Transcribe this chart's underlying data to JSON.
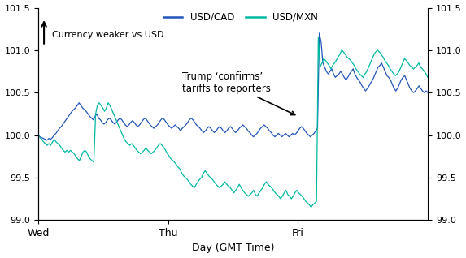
{
  "xlabel": "Day (GMT Time)",
  "ylim": [
    99.0,
    101.5
  ],
  "yticks": [
    99.0,
    99.5,
    100.0,
    100.5,
    101.0,
    101.5
  ],
  "xtick_labels": [
    "Wed",
    "Thu",
    "Fri"
  ],
  "line1_label": "USD/CAD",
  "line1_color": "#2255bb",
  "line2_label": "USD/MXN",
  "line2_color": "#00b8a0",
  "annotation_text": "Trump ‘confirms’\ntariffs to reporters",
  "currency_weaker_text": "Currency weaker vs USD",
  "usd_cad": [
    100.0,
    99.98,
    99.97,
    99.96,
    99.95,
    99.94,
    99.96,
    99.95,
    99.97,
    100.0,
    100.02,
    100.05,
    100.08,
    100.1,
    100.13,
    100.16,
    100.19,
    100.22,
    100.25,
    100.28,
    100.3,
    100.32,
    100.35,
    100.38,
    100.35,
    100.32,
    100.3,
    100.28,
    100.25,
    100.22,
    100.2,
    100.18,
    100.22,
    100.25,
    100.2,
    100.18,
    100.15,
    100.13,
    100.15,
    100.18,
    100.2,
    100.18,
    100.15,
    100.13,
    100.15,
    100.18,
    100.2,
    100.18,
    100.15,
    100.12,
    100.1,
    100.12,
    100.15,
    100.17,
    100.15,
    100.12,
    100.1,
    100.12,
    100.15,
    100.18,
    100.2,
    100.18,
    100.15,
    100.12,
    100.1,
    100.08,
    100.1,
    100.12,
    100.15,
    100.18,
    100.2,
    100.18,
    100.15,
    100.12,
    100.1,
    100.08,
    100.1,
    100.12,
    100.1,
    100.08,
    100.05,
    100.08,
    100.1,
    100.12,
    100.15,
    100.18,
    100.2,
    100.18,
    100.15,
    100.12,
    100.1,
    100.08,
    100.05,
    100.03,
    100.05,
    100.08,
    100.1,
    100.08,
    100.05,
    100.03,
    100.05,
    100.08,
    100.1,
    100.08,
    100.05,
    100.03,
    100.05,
    100.08,
    100.1,
    100.08,
    100.05,
    100.03,
    100.05,
    100.08,
    100.1,
    100.12,
    100.1,
    100.08,
    100.05,
    100.03,
    100.0,
    99.98,
    100.0,
    100.02,
    100.05,
    100.08,
    100.1,
    100.12,
    100.1,
    100.08,
    100.05,
    100.03,
    100.0,
    99.98,
    100.0,
    100.02,
    100.0,
    99.98,
    100.0,
    100.02,
    100.0,
    99.98,
    100.0,
    100.02,
    100.0,
    100.02,
    100.05,
    100.08,
    100.1,
    100.08,
    100.05,
    100.02,
    100.0,
    99.98,
    100.0,
    100.02,
    100.05,
    100.08,
    101.2,
    101.1,
    100.85,
    100.8,
    100.75,
    100.72,
    100.75,
    100.78,
    100.72,
    100.68,
    100.7,
    100.72,
    100.75,
    100.72,
    100.68,
    100.65,
    100.68,
    100.72,
    100.75,
    100.78,
    100.72,
    100.68,
    100.65,
    100.62,
    100.58,
    100.55,
    100.52,
    100.55,
    100.58,
    100.62,
    100.65,
    100.7,
    100.75,
    100.8,
    100.82,
    100.85,
    100.8,
    100.75,
    100.7,
    100.68,
    100.65,
    100.6,
    100.55,
    100.52,
    100.55,
    100.6,
    100.65,
    100.68,
    100.7,
    100.65,
    100.6,
    100.55,
    100.52,
    100.5,
    100.52,
    100.55,
    100.58,
    100.55,
    100.52,
    100.5,
    100.52,
    100.5
  ],
  "usd_mxn": [
    100.0,
    99.97,
    99.95,
    99.92,
    99.9,
    99.88,
    99.9,
    99.88,
    99.92,
    99.95,
    99.92,
    99.9,
    99.88,
    99.85,
    99.82,
    99.8,
    99.82,
    99.8,
    99.82,
    99.8,
    99.78,
    99.75,
    99.72,
    99.7,
    99.75,
    99.8,
    99.82,
    99.8,
    99.75,
    99.72,
    99.7,
    99.68,
    100.25,
    100.35,
    100.38,
    100.35,
    100.32,
    100.28,
    100.32,
    100.38,
    100.35,
    100.3,
    100.25,
    100.2,
    100.15,
    100.1,
    100.05,
    100.0,
    99.95,
    99.92,
    99.9,
    99.88,
    99.9,
    99.88,
    99.85,
    99.82,
    99.8,
    99.78,
    99.8,
    99.82,
    99.85,
    99.82,
    99.8,
    99.78,
    99.8,
    99.82,
    99.85,
    99.88,
    99.9,
    99.88,
    99.85,
    99.82,
    99.78,
    99.75,
    99.72,
    99.7,
    99.68,
    99.65,
    99.62,
    99.6,
    99.55,
    99.52,
    99.5,
    99.48,
    99.45,
    99.42,
    99.4,
    99.38,
    99.42,
    99.45,
    99.48,
    99.5,
    99.55,
    99.58,
    99.55,
    99.52,
    99.5,
    99.48,
    99.45,
    99.42,
    99.4,
    99.38,
    99.4,
    99.42,
    99.45,
    99.42,
    99.4,
    99.38,
    99.35,
    99.32,
    99.35,
    99.38,
    99.42,
    99.38,
    99.35,
    99.32,
    99.3,
    99.28,
    99.3,
    99.32,
    99.35,
    99.3,
    99.28,
    99.32,
    99.35,
    99.38,
    99.42,
    99.45,
    99.42,
    99.4,
    99.38,
    99.35,
    99.32,
    99.3,
    99.28,
    99.25,
    99.28,
    99.32,
    99.35,
    99.3,
    99.28,
    99.25,
    99.28,
    99.32,
    99.35,
    99.32,
    99.3,
    99.28,
    99.25,
    99.22,
    99.2,
    99.18,
    99.15,
    99.18,
    99.2,
    99.22,
    101.15,
    100.8,
    100.85,
    100.9,
    100.88,
    100.85,
    100.82,
    100.78,
    100.82,
    100.85,
    100.88,
    100.92,
    100.95,
    101.0,
    100.98,
    100.95,
    100.92,
    100.9,
    100.88,
    100.85,
    100.82,
    100.78,
    100.75,
    100.72,
    100.7,
    100.68,
    100.72,
    100.75,
    100.8,
    100.85,
    100.9,
    100.95,
    100.98,
    101.0,
    100.98,
    100.95,
    100.92,
    100.88,
    100.85,
    100.82,
    100.78,
    100.75,
    100.72,
    100.7,
    100.72,
    100.75,
    100.8,
    100.85,
    100.9,
    100.88,
    100.85,
    100.82,
    100.8,
    100.78,
    100.8,
    100.82,
    100.85,
    100.8,
    100.78,
    100.75,
    100.72,
    100.68
  ]
}
